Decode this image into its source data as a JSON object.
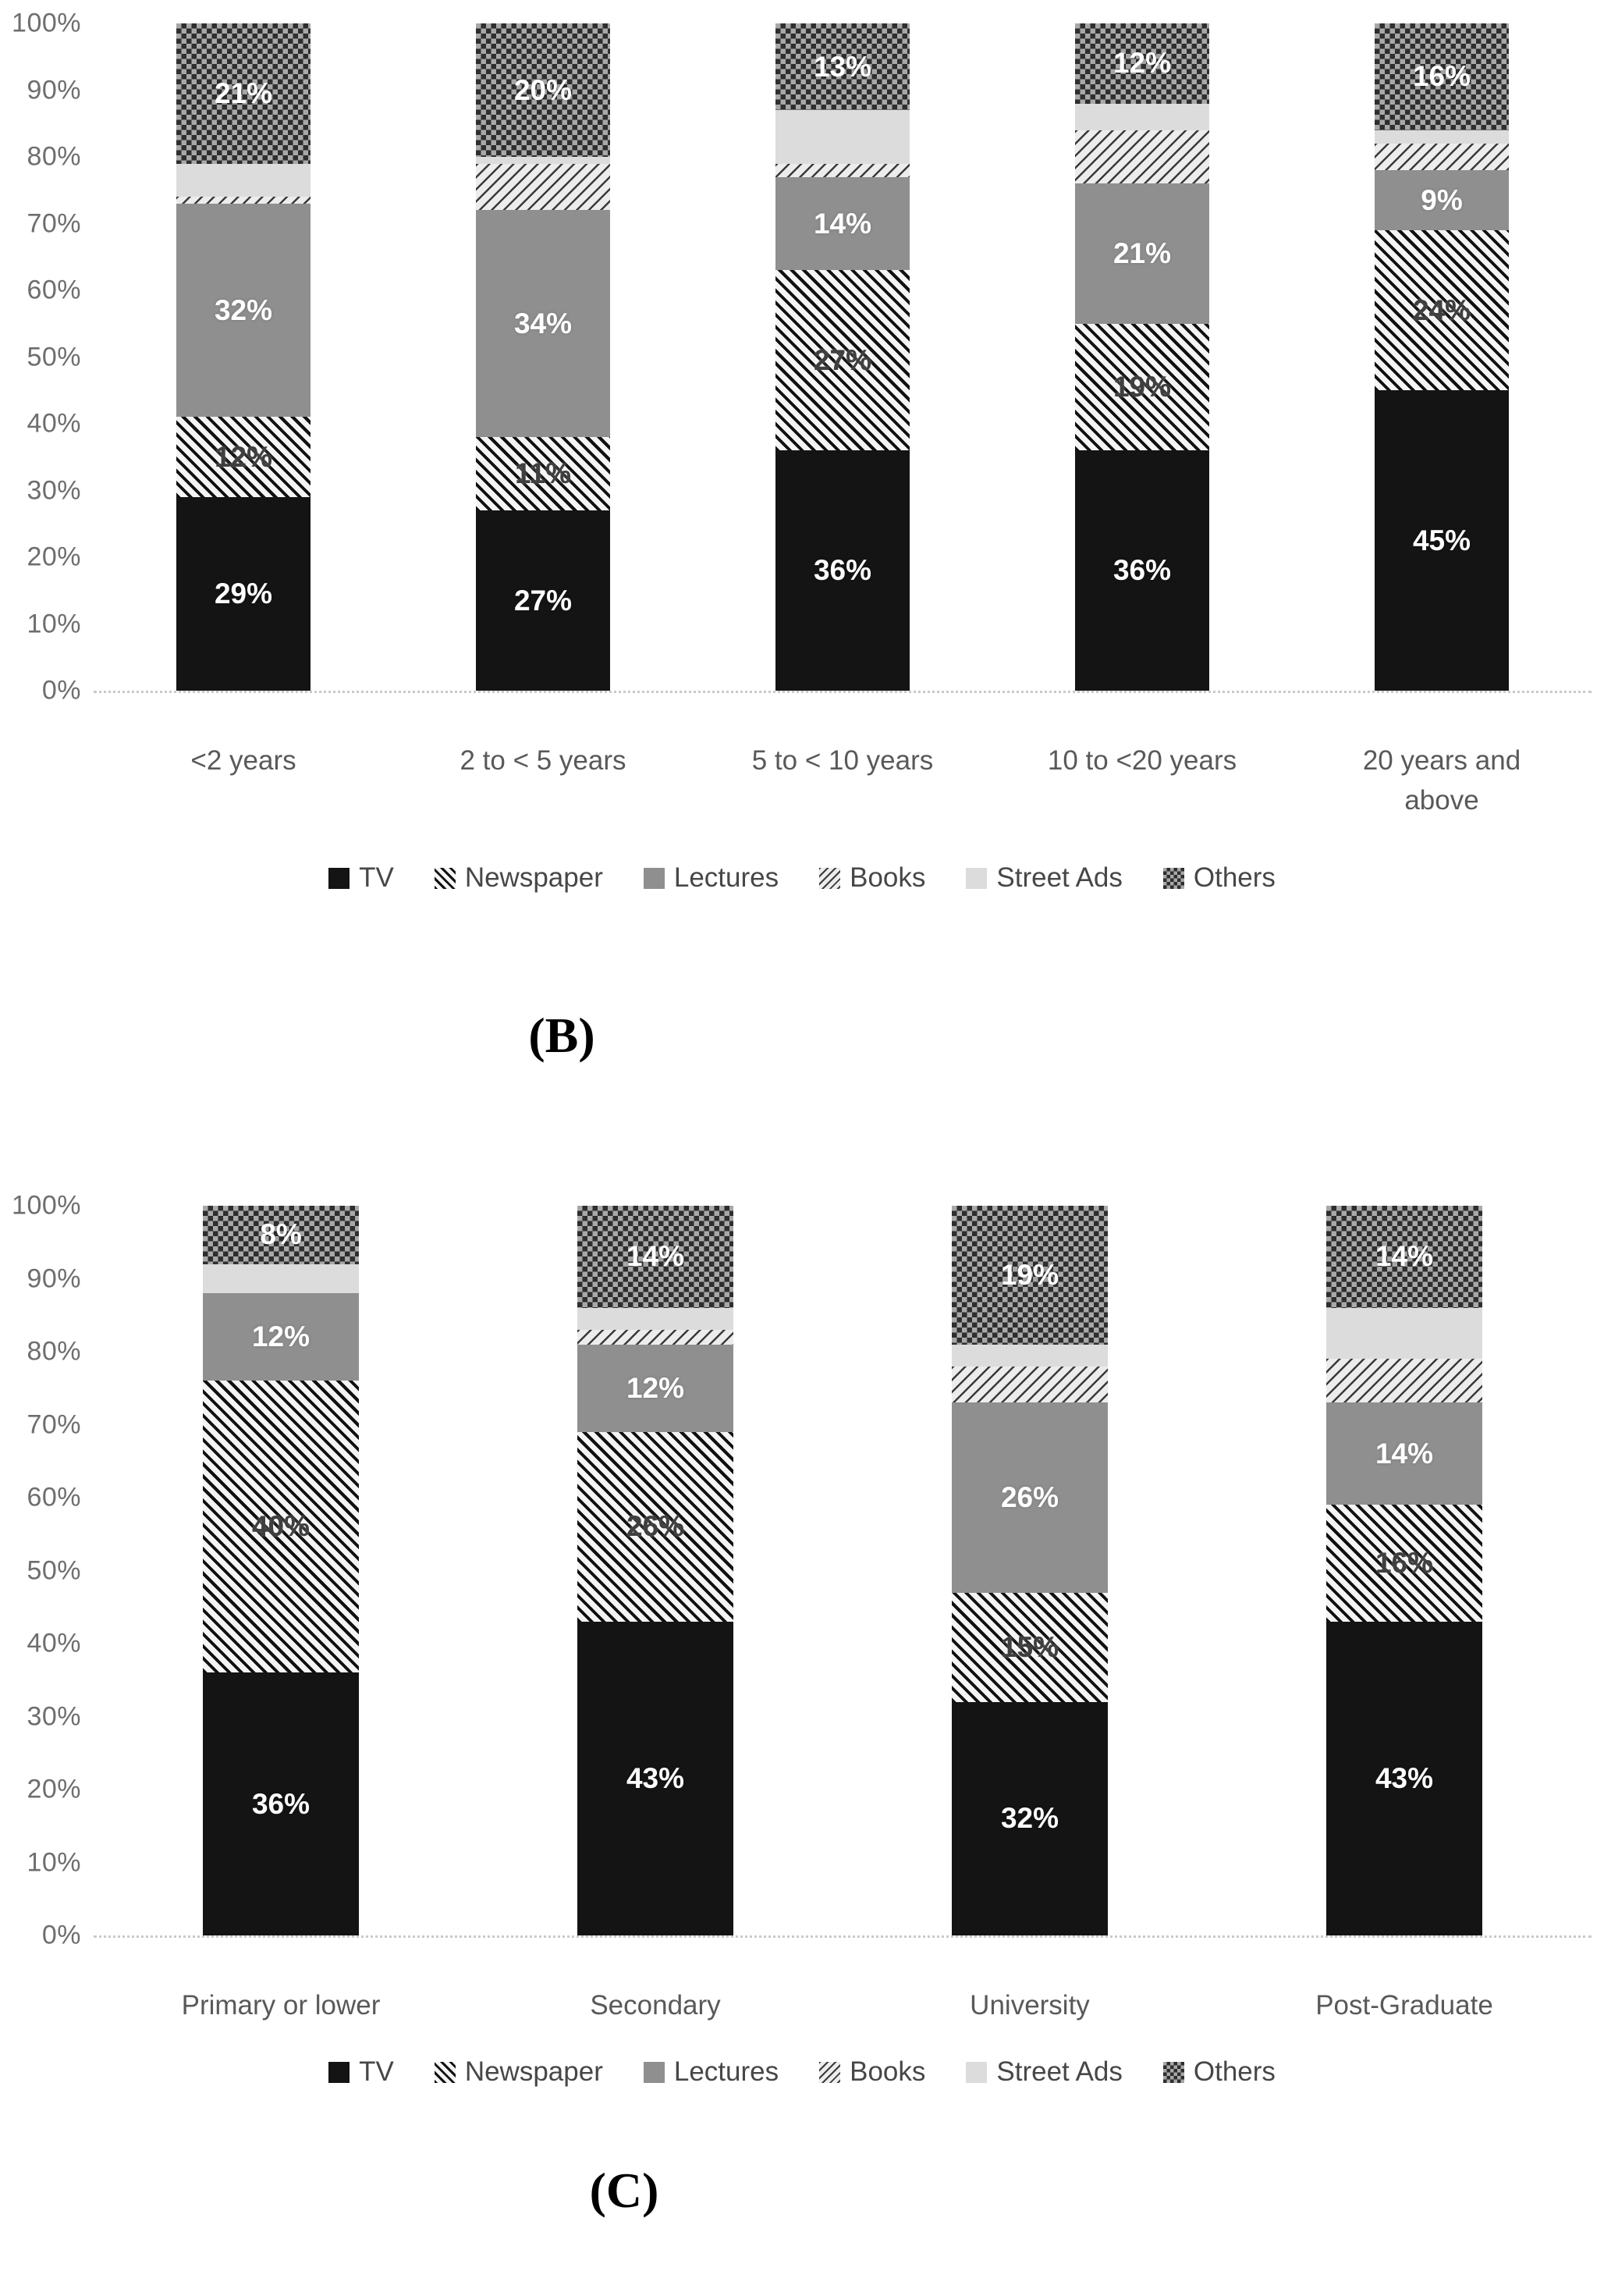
{
  "chart_data": [
    {
      "type": "bar",
      "variant": "stacked-100",
      "caption": "(B)",
      "xlabel": "",
      "ylabel": "",
      "ylim": [
        0,
        100
      ],
      "grid": false,
      "legend_position": "bottom",
      "y_ticks": [
        "100%",
        "90%",
        "80%",
        "70%",
        "60%",
        "50%",
        "40%",
        "30%",
        "20%",
        "10%",
        "0%"
      ],
      "categories": [
        "<2 years",
        "2 to < 5 years",
        "5 to < 10 years",
        "10 to <20 years",
        "20 years and above"
      ],
      "series": [
        {
          "name": "TV",
          "pattern": "tv",
          "labeled": true,
          "labelDark": false,
          "values": [
            29,
            27,
            36,
            36,
            45
          ]
        },
        {
          "name": "Newspaper",
          "pattern": "newspaper",
          "labeled": true,
          "labelDark": true,
          "values": [
            12,
            11,
            27,
            19,
            24
          ]
        },
        {
          "name": "Lectures",
          "pattern": "lectures",
          "labeled": true,
          "labelDark": false,
          "values": [
            32,
            34,
            14,
            21,
            9
          ]
        },
        {
          "name": "Books",
          "pattern": "books",
          "labeled": false,
          "labelDark": true,
          "values": [
            1,
            7,
            2,
            8,
            4
          ]
        },
        {
          "name": "Street Ads",
          "pattern": "streetads",
          "labeled": false,
          "labelDark": true,
          "values": [
            5,
            1,
            8,
            4,
            2
          ]
        },
        {
          "name": "Others",
          "pattern": "others",
          "labeled": true,
          "labelDark": false,
          "values": [
            21,
            20,
            13,
            12,
            16
          ]
        }
      ],
      "legend": [
        {
          "label": "TV",
          "pattern": "tv"
        },
        {
          "label": "Newspaper",
          "pattern": "newspaper"
        },
        {
          "label": "Lectures",
          "pattern": "lectures"
        },
        {
          "label": "Books",
          "pattern": "books"
        },
        {
          "label": "Street Ads",
          "pattern": "streetads"
        },
        {
          "label": "Others",
          "pattern": "others"
        }
      ]
    },
    {
      "type": "bar",
      "variant": "stacked-100",
      "caption": "(C)",
      "xlabel": "",
      "ylabel": "",
      "ylim": [
        0,
        100
      ],
      "grid": false,
      "legend_position": "bottom",
      "y_ticks": [
        "100%",
        "90%",
        "80%",
        "70%",
        "60%",
        "50%",
        "40%",
        "30%",
        "20%",
        "10%",
        "0%"
      ],
      "categories": [
        "Primary or lower",
        "Secondary",
        "University",
        "Post-Graduate"
      ],
      "series": [
        {
          "name": "TV",
          "pattern": "tv",
          "labeled": true,
          "labelDark": false,
          "values": [
            36,
            43,
            32,
            43
          ]
        },
        {
          "name": "Newspaper",
          "pattern": "newspaper",
          "labeled": true,
          "labelDark": true,
          "values": [
            40,
            26,
            15,
            16
          ]
        },
        {
          "name": "Lectures",
          "pattern": "lectures",
          "labeled": true,
          "labelDark": false,
          "values": [
            12,
            12,
            26,
            14
          ]
        },
        {
          "name": "Books",
          "pattern": "books",
          "labeled": false,
          "labelDark": true,
          "values": [
            0,
            2,
            5,
            6
          ]
        },
        {
          "name": "Street Ads",
          "pattern": "streetads",
          "labeled": false,
          "labelDark": true,
          "values": [
            4,
            3,
            3,
            7
          ]
        },
        {
          "name": "Others",
          "pattern": "others",
          "labeled": true,
          "labelDark": false,
          "values": [
            8,
            14,
            19,
            14
          ]
        }
      ],
      "legend": [
        {
          "label": "TV",
          "pattern": "tv"
        },
        {
          "label": "Newspaper",
          "pattern": "newspaper"
        },
        {
          "label": "Lectures",
          "pattern": "lectures"
        },
        {
          "label": "Books",
          "pattern": "books"
        },
        {
          "label": "Street Ads",
          "pattern": "streetads"
        },
        {
          "label": "Others",
          "pattern": "others"
        }
      ]
    }
  ]
}
